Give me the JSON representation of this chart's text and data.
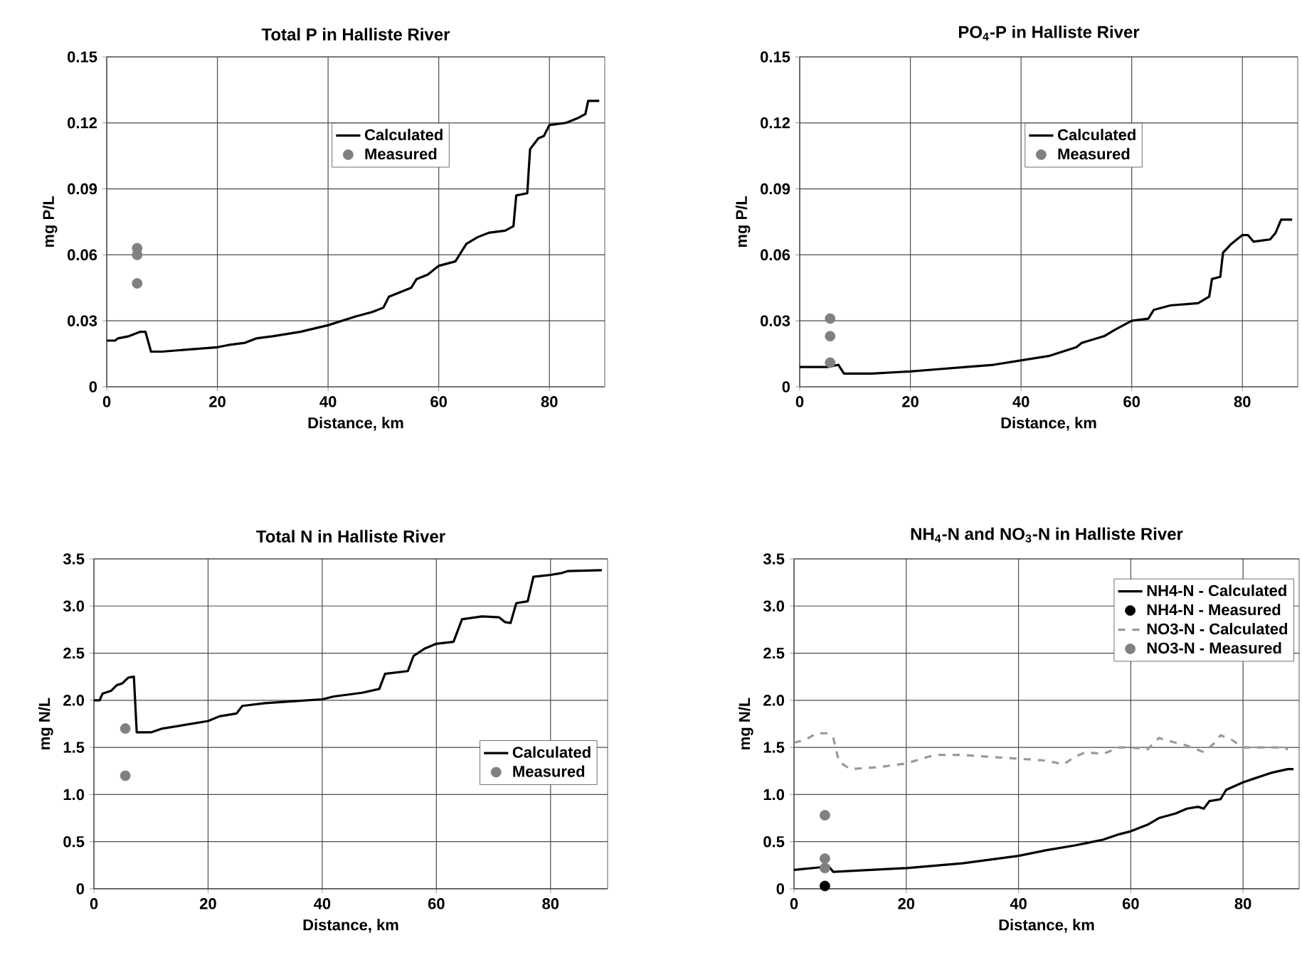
{
  "chart_data": [
    {
      "type": "line",
      "title": "Total P in Halliste River",
      "xlabel": "Distance, km",
      "ylabel": "mg P/L",
      "xlim": [
        0,
        90
      ],
      "xticks": [
        0,
        20,
        40,
        60,
        80
      ],
      "ylim": [
        0,
        0.15
      ],
      "yticks": [
        0,
        0.03,
        0.06,
        0.09,
        0.12,
        0.15
      ],
      "grid": true,
      "legend": "top",
      "series": [
        {
          "name": "Calculated",
          "line_style": "solid",
          "marker": "none",
          "color": "#000000",
          "x": [
            0,
            1.5,
            2,
            4,
            5,
            6,
            7,
            8,
            10,
            15,
            20,
            22,
            25,
            27,
            30,
            35,
            40,
            45,
            48,
            50,
            51,
            53,
            55,
            56,
            58,
            60,
            63,
            65,
            67,
            69,
            72,
            73.5,
            74,
            76,
            76.5,
            78,
            79,
            80,
            83,
            85,
            86.5,
            87,
            89
          ],
          "values": [
            0.021,
            0.021,
            0.022,
            0.023,
            0.024,
            0.025,
            0.025,
            0.016,
            0.016,
            0.017,
            0.018,
            0.019,
            0.02,
            0.022,
            0.023,
            0.025,
            0.028,
            0.032,
            0.034,
            0.036,
            0.041,
            0.043,
            0.045,
            0.049,
            0.051,
            0.055,
            0.057,
            0.065,
            0.068,
            0.07,
            0.071,
            0.073,
            0.087,
            0.088,
            0.108,
            0.113,
            0.114,
            0.119,
            0.12,
            0.122,
            0.124,
            0.13,
            0.13
          ]
        },
        {
          "name": "Measured",
          "type": "scatter",
          "marker": "circle",
          "color": "#808080",
          "x": [
            5.5,
            5.5,
            5.5
          ],
          "values": [
            0.063,
            0.06,
            0.047
          ]
        }
      ]
    },
    {
      "type": "line",
      "title": "PO$_{4}$-P in Halliste River",
      "xlabel": "Distance, km",
      "ylabel": "mg P/L",
      "xlim": [
        0,
        90
      ],
      "xticks": [
        0,
        20,
        40,
        60,
        80
      ],
      "ylim": [
        0,
        0.15
      ],
      "yticks": [
        0,
        0.03,
        0.06,
        0.09,
        0.12,
        0.15
      ],
      "grid": true,
      "legend": "top",
      "series": [
        {
          "name": "Calculated",
          "line_style": "solid",
          "marker": "none",
          "color": "#000000",
          "x": [
            0,
            5,
            7,
            8,
            13,
            20,
            25,
            30,
            35,
            40,
            45,
            50,
            51,
            55,
            57,
            60,
            63,
            64,
            67,
            72,
            74,
            74.5,
            76,
            76.5,
            78,
            80,
            81,
            82,
            85,
            86,
            87,
            89
          ],
          "values": [
            0.009,
            0.009,
            0.01,
            0.006,
            0.006,
            0.007,
            0.008,
            0.009,
            0.01,
            0.012,
            0.014,
            0.018,
            0.02,
            0.023,
            0.026,
            0.03,
            0.031,
            0.035,
            0.037,
            0.038,
            0.041,
            0.049,
            0.05,
            0.061,
            0.065,
            0.069,
            0.069,
            0.066,
            0.067,
            0.07,
            0.076,
            0.076
          ]
        },
        {
          "name": "Measured",
          "type": "scatter",
          "marker": "circle",
          "color": "#808080",
          "x": [
            5.5,
            5.5,
            5.5
          ],
          "values": [
            0.031,
            0.023,
            0.011
          ]
        }
      ]
    },
    {
      "type": "line",
      "title": "Total N in Halliste River",
      "xlabel": "Distance, km",
      "ylabel": "mg N/L",
      "xlim": [
        0,
        90
      ],
      "xticks": [
        0,
        20,
        40,
        60,
        80
      ],
      "ylim": [
        0,
        3.5
      ],
      "yticks": [
        0,
        0.5,
        {
          "value": 1,
          "label": "1.0"
        },
        1.5,
        {
          "value": 2,
          "label": "2.0"
        },
        2.5,
        {
          "value": 3,
          "label": "3.0"
        },
        3.5
      ],
      "grid": true,
      "legend": "right",
      "series": [
        {
          "name": "Calculated",
          "line_style": "solid",
          "marker": "none",
          "color": "#000000",
          "x": [
            0,
            1,
            1.5,
            3,
            4,
            5,
            6,
            7,
            7.5,
            10,
            12,
            15,
            20,
            22,
            25,
            26,
            30,
            35,
            40,
            42,
            47,
            50,
            51,
            55,
            56,
            58,
            60,
            63,
            64.5,
            68,
            71,
            72,
            73,
            74,
            76,
            77,
            80,
            82,
            83,
            89
          ],
          "values": [
            2.0,
            2.0,
            2.07,
            2.1,
            2.16,
            2.18,
            2.24,
            2.25,
            1.66,
            1.66,
            1.7,
            1.73,
            1.78,
            1.83,
            1.86,
            1.94,
            1.97,
            1.99,
            2.01,
            2.04,
            2.08,
            2.12,
            2.28,
            2.31,
            2.47,
            2.55,
            2.6,
            2.62,
            2.86,
            2.89,
            2.88,
            2.83,
            2.82,
            3.03,
            3.05,
            3.31,
            3.33,
            3.35,
            3.37,
            3.38
          ]
        },
        {
          "name": "Measured",
          "type": "scatter",
          "marker": "circle",
          "color": "#808080",
          "x": [
            5.5,
            5.5
          ],
          "values": [
            1.7,
            1.2
          ]
        }
      ]
    },
    {
      "type": "line",
      "title": "NH$_{4}$-N and NO$_{3}$-N in Halliste River",
      "xlabel": "Distance, km",
      "ylabel": "mg N/L",
      "xlim": [
        0,
        90
      ],
      "xticks": [
        0,
        20,
        40,
        60,
        80
      ],
      "ylim": [
        0,
        3.5
      ],
      "yticks": [
        0,
        0.5,
        {
          "value": 1,
          "label": "1.0"
        },
        1.5,
        {
          "value": 2,
          "label": "2.0"
        },
        2.5,
        {
          "value": 3,
          "label": "3.0"
        },
        3.5
      ],
      "grid": true,
      "legend": "top right",
      "series": [
        {
          "name": "NH4-N - Calculated",
          "line_style": "solid",
          "marker": "none",
          "color": "#000000",
          "x": [
            0,
            5,
            6,
            7,
            10,
            20,
            30,
            40,
            45,
            50,
            55,
            58,
            60,
            63,
            65,
            68,
            70,
            72,
            73,
            74,
            76,
            77,
            80,
            82,
            85,
            88,
            89
          ],
          "values": [
            0.2,
            0.23,
            0.25,
            0.18,
            0.19,
            0.22,
            0.27,
            0.35,
            0.41,
            0.46,
            0.52,
            0.58,
            0.61,
            0.68,
            0.75,
            0.8,
            0.85,
            0.87,
            0.85,
            0.93,
            0.95,
            1.05,
            1.13,
            1.17,
            1.23,
            1.27,
            1.27
          ]
        },
        {
          "name": "NH4-N - Measured",
          "type": "scatter",
          "marker": "circle",
          "color": "#000000",
          "x": [
            5.5
          ],
          "values": [
            0.03
          ]
        },
        {
          "name": "NO3-N - Calculated",
          "line_style": "dashed",
          "marker": "none",
          "color": "#999999",
          "x": [
            0,
            2,
            4,
            6,
            7,
            8,
            10,
            15,
            20,
            25,
            30,
            35,
            40,
            45,
            48,
            50,
            52,
            55,
            58,
            60,
            63,
            65,
            68,
            70,
            73,
            75,
            76,
            78,
            80,
            83,
            86,
            88
          ],
          "values": [
            1.55,
            1.58,
            1.65,
            1.65,
            1.6,
            1.35,
            1.27,
            1.29,
            1.33,
            1.42,
            1.42,
            1.4,
            1.38,
            1.36,
            1.32,
            1.4,
            1.45,
            1.43,
            1.5,
            1.5,
            1.48,
            1.6,
            1.55,
            1.52,
            1.45,
            1.55,
            1.63,
            1.58,
            1.5,
            1.5,
            1.5,
            1.48
          ]
        },
        {
          "name": "NO3-N - Measured",
          "type": "scatter",
          "marker": "circle",
          "color": "#808080",
          "x": [
            5.5,
            5.5,
            5.5
          ],
          "values": [
            0.78,
            0.32,
            0.22
          ]
        }
      ]
    }
  ]
}
